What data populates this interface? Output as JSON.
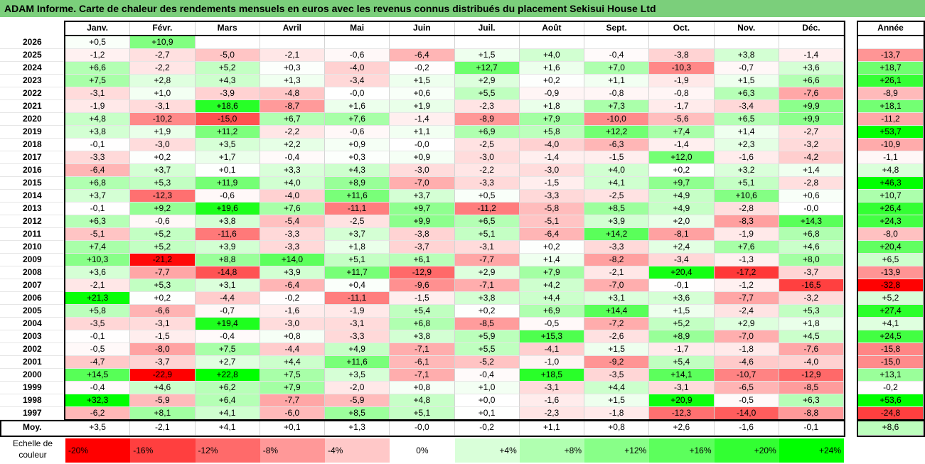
{
  "title": "ADAM Informe. Carte de chaleur des rendements mensuels en euros avec les revenus connus distribués du placement Sekisui House Ltd",
  "months": [
    "Janv.",
    "Févr.",
    "Mars",
    "Avril",
    "Mai",
    "Juin",
    "Juil.",
    "Août",
    "Sept.",
    "Oct.",
    "Nov.",
    "Déc."
  ],
  "year_header": "Année",
  "avg_label": "Moy.",
  "scale_label": "Echelle de couleur",
  "chart_data": {
    "type": "heatmap",
    "title": "ADAM Informe. Carte de chaleur des rendements mensuels en euros avec les revenus connus distribués du placement Sekisui House Ltd",
    "rows": [
      {
        "year": "2026",
        "values": [
          "+0,5",
          "+10,9",
          "",
          "",
          "",
          "",
          "",
          "",
          "",
          "",
          "",
          ""
        ],
        "annual": ""
      },
      {
        "year": "2025",
        "values": [
          "-1,2",
          "-2,7",
          "-5,0",
          "-2,1",
          "-0,6",
          "-6,4",
          "+1,5",
          "+4,0",
          "-0,4",
          "-3,8",
          "+3,8",
          "-1,4"
        ],
        "annual": "-13,7"
      },
      {
        "year": "2024",
        "values": [
          "+6,6",
          "-2,2",
          "+5,2",
          "+0,3",
          "-4,0",
          "-0,2",
          "+12,7",
          "+1,6",
          "+7,0",
          "-10,3",
          "-0,7",
          "+3,6"
        ],
        "annual": "+18,7"
      },
      {
        "year": "2023",
        "values": [
          "+7,5",
          "+2,8",
          "+4,3",
          "+1,3",
          "-3,4",
          "+1,5",
          "+2,9",
          "+0,2",
          "+1,1",
          "-1,9",
          "+1,5",
          "+6,6"
        ],
        "annual": "+26,1"
      },
      {
        "year": "2022",
        "values": [
          "-3,1",
          "+1,0",
          "-3,9",
          "-4,8",
          "-0,0",
          "+0,6",
          "+5,5",
          "-0,9",
          "-0,8",
          "-0,8",
          "+6,3",
          "-7,6"
        ],
        "annual": "-8,9"
      },
      {
        "year": "2021",
        "values": [
          "-1,9",
          "-3,1",
          "+18,6",
          "-8,7",
          "+1,6",
          "+1,9",
          "-2,3",
          "+1,8",
          "+7,3",
          "-1,7",
          "-3,4",
          "+9,9"
        ],
        "annual": "+18,1"
      },
      {
        "year": "2020",
        "values": [
          "+4,8",
          "-10,2",
          "-15,0",
          "+6,7",
          "+7,6",
          "-1,4",
          "-8,9",
          "+7,9",
          "-10,0",
          "-5,6",
          "+6,5",
          "+9,9"
        ],
        "annual": "-11,2"
      },
      {
        "year": "2019",
        "values": [
          "+3,8",
          "+1,9",
          "+11,2",
          "-2,2",
          "-0,6",
          "+1,1",
          "+6,9",
          "+5,8",
          "+12,2",
          "+7,4",
          "+1,4",
          "-2,7"
        ],
        "annual": "+53,7"
      },
      {
        "year": "2018",
        "values": [
          "-0,1",
          "-3,0",
          "+3,5",
          "+2,2",
          "+0,9",
          "-0,0",
          "-2,5",
          "-4,0",
          "-6,3",
          "-1,4",
          "+2,3",
          "-3,2"
        ],
        "annual": "-10,9"
      },
      {
        "year": "2017",
        "values": [
          "-3,3",
          "+0,2",
          "+1,7",
          "-0,4",
          "+0,3",
          "+0,9",
          "-3,0",
          "-1,4",
          "-1,5",
          "+12,0",
          "-1,6",
          "-4,2"
        ],
        "annual": "-1,1"
      },
      {
        "year": "2016",
        "values": [
          "-6,4",
          "+3,7",
          "+0,1",
          "+3,3",
          "+4,3",
          "-3,0",
          "-2,2",
          "-3,0",
          "+4,0",
          "+0,2",
          "+3,2",
          "+1,4"
        ],
        "annual": "+4,8"
      },
      {
        "year": "2015",
        "values": [
          "+6,8",
          "+5,3",
          "+11,9",
          "+4,0",
          "+8,9",
          "-7,0",
          "-3,3",
          "-1,5",
          "+4,1",
          "+9,7",
          "+5,1",
          "-2,8"
        ],
        "annual": "+46,3"
      },
      {
        "year": "2014",
        "values": [
          "+3,7",
          "-12,3",
          "-0,6",
          "-4,0",
          "+11,6",
          "+3,7",
          "+0,5",
          "-3,3",
          "-2,5",
          "+4,9",
          "+10,6",
          "+0,6"
        ],
        "annual": "+10,7"
      },
      {
        "year": "2013",
        "values": [
          "-0,1",
          "+9,2",
          "+19,6",
          "+7,6",
          "-11,1",
          "+9,7",
          "-11,2",
          "-5,8",
          "+8,5",
          "+4,9",
          "-2,8",
          "-0,0"
        ],
        "annual": "+26,4"
      },
      {
        "year": "2012",
        "values": [
          "+6,3",
          "-0,6",
          "+3,8",
          "-5,4",
          "-2,5",
          "+9,9",
          "+6,5",
          "-5,1",
          "+3,9",
          "+2,0",
          "-8,3",
          "+14,3"
        ],
        "annual": "+24,3"
      },
      {
        "year": "2011",
        "values": [
          "-5,1",
          "+5,2",
          "-11,6",
          "-3,3",
          "+3,7",
          "-3,8",
          "+5,1",
          "-6,4",
          "+14,2",
          "-8,1",
          "-1,9",
          "+6,8"
        ],
        "annual": "-8,0"
      },
      {
        "year": "2010",
        "values": [
          "+7,4",
          "+5,2",
          "+3,9",
          "-3,3",
          "+1,8",
          "-3,7",
          "-3,1",
          "+0,2",
          "-3,3",
          "+2,4",
          "+7,6",
          "+4,6"
        ],
        "annual": "+20,4"
      },
      {
        "year": "2009",
        "values": [
          "+10,3",
          "-21,2",
          "+8,8",
          "+14,0",
          "+5,1",
          "+6,1",
          "-7,7",
          "+1,4",
          "-8,2",
          "-3,4",
          "-1,3",
          "+8,0"
        ],
        "annual": "+6,5"
      },
      {
        "year": "2008",
        "values": [
          "+3,6",
          "-7,7",
          "-14,8",
          "+3,9",
          "+11,7",
          "-12,9",
          "+2,9",
          "+7,9",
          "-2,1",
          "+20,4",
          "-17,2",
          "-3,7"
        ],
        "annual": "-13,9"
      },
      {
        "year": "2007",
        "values": [
          "-2,1",
          "+5,3",
          "+3,1",
          "-6,4",
          "+0,4",
          "-9,6",
          "-7,1",
          "+4,2",
          "-7,0",
          "-0,1",
          "-1,2",
          "-16,5"
        ],
        "annual": "-32,8"
      },
      {
        "year": "2006",
        "values": [
          "+21,3",
          "+0,2",
          "-4,4",
          "-0,2",
          "-11,1",
          "-1,5",
          "+3,8",
          "+4,4",
          "+3,1",
          "+3,6",
          "-7,7",
          "-3,2"
        ],
        "annual": "+5,2"
      },
      {
        "year": "2005",
        "values": [
          "+5,8",
          "-6,6",
          "-0,7",
          "-1,6",
          "-1,9",
          "+5,4",
          "+0,2",
          "+6,9",
          "+14,4",
          "+1,5",
          "-2,4",
          "+5,3"
        ],
        "annual": "+27,4"
      },
      {
        "year": "2004",
        "values": [
          "-3,5",
          "-3,1",
          "+19,4",
          "-3,0",
          "-3,1",
          "+6,8",
          "-8,5",
          "-0,5",
          "-7,2",
          "+5,2",
          "+2,9",
          "+1,8"
        ],
        "annual": "+4,1"
      },
      {
        "year": "2003",
        "values": [
          "-0,1",
          "-1,5",
          "-0,4",
          "+0,8",
          "-3,3",
          "+3,8",
          "+5,9",
          "+15,3",
          "-2,6",
          "+8,9",
          "-7,0",
          "+4,5"
        ],
        "annual": "+24,5"
      },
      {
        "year": "2002",
        "values": [
          "-0,5",
          "-8,0",
          "+7,5",
          "-4,4",
          "+4,9",
          "-7,1",
          "+5,5",
          "-4,1",
          "+1,5",
          "-1,7",
          "-1,8",
          "-7,6"
        ],
        "annual": "-15,8"
      },
      {
        "year": "2001",
        "values": [
          "-4,7",
          "-3,7",
          "+2,7",
          "+4,4",
          "+11,6",
          "-6,1",
          "-5,2",
          "-1,0",
          "-9,2",
          "+5,4",
          "-4,6",
          "-4,0"
        ],
        "annual": "-15,0"
      },
      {
        "year": "2000",
        "values": [
          "+14,5",
          "-22,9",
          "+22,8",
          "+7,5",
          "+3,5",
          "-7,1",
          "-0,4",
          "+18,5",
          "-3,5",
          "+14,1",
          "-10,7",
          "-12,9"
        ],
        "annual": "+13,1"
      },
      {
        "year": "1999",
        "values": [
          "-0,4",
          "+4,6",
          "+6,2",
          "+7,9",
          "-2,0",
          "+0,8",
          "+1,0",
          "-3,1",
          "+4,4",
          "-3,1",
          "-6,5",
          "-8,5"
        ],
        "annual": "-0,2"
      },
      {
        "year": "1998",
        "values": [
          "+32,3",
          "-5,9",
          "+6,4",
          "-7,7",
          "-5,9",
          "+4,8",
          "+0,0",
          "-1,6",
          "+1,5",
          "+20,9",
          "-0,5",
          "+6,3"
        ],
        "annual": "+53,6"
      },
      {
        "year": "1997",
        "values": [
          "-6,2",
          "+8,1",
          "+4,1",
          "-6,0",
          "+8,5",
          "+5,1",
          "+0,1",
          "-2,3",
          "-1,8",
          "-12,3",
          "-14,0",
          "-8,8"
        ],
        "annual": "-24,8"
      }
    ],
    "averages": [
      "+3,5",
      "-2,1",
      "+4,1",
      "+0,1",
      "+1,3",
      "-0,0",
      "-0,2",
      "+1,1",
      "+0,8",
      "+2,6",
      "-1,6",
      "-0,1"
    ],
    "average_annual": "+8,6",
    "color_scale": {
      "labels": [
        "-20%",
        "-16%",
        "-12%",
        "-8%",
        "-4%",
        "0%",
        "+4%",
        "+8%",
        "+12%",
        "+16%",
        "+20%",
        "+24%"
      ],
      "stops": [
        -20,
        -16,
        -12,
        -8,
        -4,
        0,
        4,
        8,
        12,
        16,
        20,
        24
      ],
      "colors": [
        "#ff0000",
        "#ff3f3f",
        "#ff6a6a",
        "#ff9898",
        "#ffc8c8",
        "#ffffff",
        "#d9ffd9",
        "#b0ffb0",
        "#88ff88",
        "#5cff5c",
        "#32ff32",
        "#00ff00"
      ]
    }
  }
}
